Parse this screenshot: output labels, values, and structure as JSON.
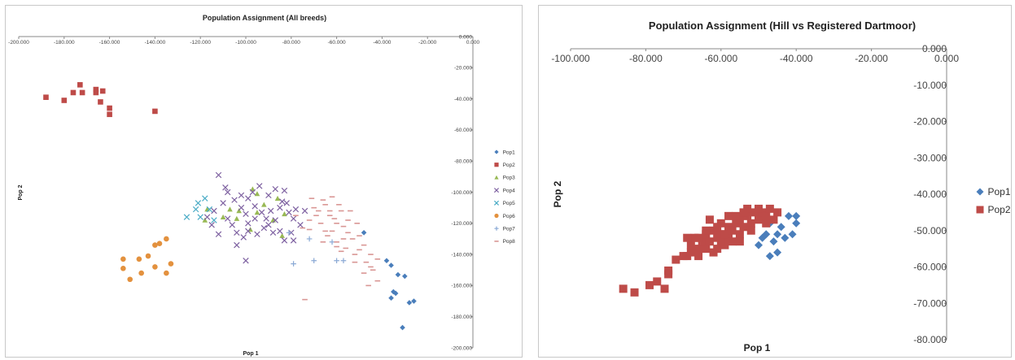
{
  "chart_data": [
    {
      "type": "scatter",
      "title": "Population Assignment (All breeds)",
      "xlabel": "Pop 1",
      "ylabel": "Pop 2",
      "xlim": [
        -200,
        0
      ],
      "ylim": [
        -200,
        0
      ],
      "x_ticks": [
        "-200.000",
        "-180.000",
        "-160.000",
        "-140.000",
        "-120.000",
        "-100.000",
        "-80.000",
        "-60.000",
        "-40.000",
        "-20.000",
        "0.000"
      ],
      "y_ticks": [
        "0.000",
        "-20.000",
        "-40.000",
        "-60.000",
        "-80.000",
        "-100.000",
        "-120.000",
        "-140.000",
        "-160.000",
        "-180.000",
        "-200.000"
      ],
      "grid": false,
      "legend_position": "right",
      "series": [
        {
          "name": "Pop1",
          "color": "#4a7ebb",
          "marker": "diamond",
          "points": [
            [
              -48,
              -126
            ],
            [
              -38,
              -144
            ],
            [
              -36,
              -147
            ],
            [
              -33,
              -153
            ],
            [
              -30,
              -154
            ],
            [
              -34,
              -165
            ],
            [
              -36,
              -168
            ],
            [
              -35,
              -164
            ],
            [
              -28,
              -171
            ],
            [
              -26,
              -170
            ],
            [
              -31,
              -187
            ]
          ]
        },
        {
          "name": "Pop2",
          "color": "#be4b48",
          "marker": "square",
          "points": [
            [
              -188,
              -39
            ],
            [
              -180,
              -41
            ],
            [
              -176,
              -36
            ],
            [
              -173,
              -31
            ],
            [
              -172,
              -36
            ],
            [
              -166,
              -34
            ],
            [
              -166,
              -36
            ],
            [
              -163,
              -35
            ],
            [
              -164,
              -42
            ],
            [
              -160,
              -46
            ],
            [
              -160,
              -50
            ],
            [
              -140,
              -48
            ]
          ]
        },
        {
          "name": "Pop3",
          "color": "#98b954",
          "marker": "triangle",
          "points": [
            [
              -118,
              -118
            ],
            [
              -117,
              -111
            ],
            [
              -110,
              -116
            ],
            [
              -107,
              -111
            ],
            [
              -104,
              -117
            ],
            [
              -103,
              -112
            ],
            [
              -97,
              -98
            ],
            [
              -95,
              -113
            ],
            [
              -98,
              -124
            ],
            [
              -92,
              -108
            ],
            [
              -88,
              -118
            ],
            [
              -86,
              -104
            ],
            [
              -83,
              -114
            ],
            [
              -84,
              -128
            ],
            [
              -95,
              -101
            ]
          ]
        },
        {
          "name": "Pop4",
          "color": "#7d60a0",
          "marker": "x",
          "points": [
            [
              -112,
              -89
            ],
            [
              -109,
              -97
            ],
            [
              -108,
              -100
            ],
            [
              -110,
              -107
            ],
            [
              -114,
              -112
            ],
            [
              -105,
              -105
            ],
            [
              -102,
              -110
            ],
            [
              -100,
              -114
            ],
            [
              -99,
              -104
            ],
            [
              -97,
              -100
            ],
            [
              -94,
              -96
            ],
            [
              -96,
              -109
            ],
            [
              -93,
              -113
            ],
            [
              -91,
              -117
            ],
            [
              -89,
              -112
            ],
            [
              -90,
              -121
            ],
            [
              -87,
              -118
            ],
            [
              -85,
              -110
            ],
            [
              -82,
              -107
            ],
            [
              -81,
              -113
            ],
            [
              -79,
              -117
            ],
            [
              -78,
              -111
            ],
            [
              -76,
              -121
            ],
            [
              -80,
              -126
            ],
            [
              -83,
              -131
            ],
            [
              -88,
              -126
            ],
            [
              -92,
              -123
            ],
            [
              -95,
              -127
            ],
            [
              -99,
              -120
            ],
            [
              -101,
              -129
            ],
            [
              -104,
              -126
            ],
            [
              -106,
              -121
            ],
            [
              -108,
              -117
            ],
            [
              -112,
              -127
            ],
            [
              -115,
              -121
            ],
            [
              -117,
              -116
            ],
            [
              -102,
              -102
            ],
            [
              -87,
              -98
            ],
            [
              -84,
              -106
            ],
            [
              -83,
              -99
            ],
            [
              -79,
              -131
            ],
            [
              -100,
              -144
            ],
            [
              -74,
              -112
            ],
            [
              -96,
              -117
            ],
            [
              -90,
              -102
            ],
            [
              -85,
              -125
            ],
            [
              -99,
              -125
            ],
            [
              -104,
              -134
            ]
          ]
        },
        {
          "name": "Pop5",
          "color": "#4bacc6",
          "marker": "x",
          "points": [
            [
              -126,
              -116
            ],
            [
              -121,
              -107
            ],
            [
              -118,
              -104
            ],
            [
              -116,
              -111
            ],
            [
              -114,
              -118
            ],
            [
              -120,
              -116
            ],
            [
              -122,
              -111
            ]
          ]
        },
        {
          "name": "Pop6",
          "color": "#e3913e",
          "marker": "circle",
          "points": [
            [
              -154,
              -143
            ],
            [
              -154,
              -149
            ],
            [
              -147,
              -143
            ],
            [
              -151,
              -156
            ],
            [
              -146,
              -152
            ],
            [
              -143,
              -141
            ],
            [
              -140,
              -134
            ],
            [
              -138,
              -133
            ],
            [
              -135,
              -130
            ],
            [
              -140,
              -148
            ],
            [
              -135,
              -152
            ],
            [
              -133,
              -146
            ]
          ]
        },
        {
          "name": "Pop7",
          "color": "#8aa9d5",
          "marker": "plus",
          "points": [
            [
              -81,
              -126
            ],
            [
              -72,
              -130
            ],
            [
              -70,
              -144
            ],
            [
              -60,
              -144
            ],
            [
              -57,
              -144
            ],
            [
              -62,
              -132
            ],
            [
              -79,
              -146
            ]
          ]
        },
        {
          "name": "Pop8",
          "color": "#d99694",
          "marker": "dash",
          "points": [
            [
              -70,
              -110
            ],
            [
              -68,
              -112
            ],
            [
              -65,
              -108
            ],
            [
              -63,
              -115
            ],
            [
              -60,
              -120
            ],
            [
              -62,
              -125
            ],
            [
              -58,
              -112
            ],
            [
              -55,
              -118
            ],
            [
              -57,
              -122
            ],
            [
              -53,
              -130
            ],
            [
              -60,
              -132
            ],
            [
              -64,
              -128
            ],
            [
              -67,
              -120
            ],
            [
              -72,
              -118
            ],
            [
              -75,
              -123
            ],
            [
              -78,
              -115
            ],
            [
              -55,
              -126
            ],
            [
              -50,
              -128
            ],
            [
              -48,
              -134
            ],
            [
              -52,
              -140
            ],
            [
              -56,
              -136
            ],
            [
              -45,
              -140
            ],
            [
              -42,
              -143
            ],
            [
              -45,
              -148
            ],
            [
              -48,
              -152
            ],
            [
              -42,
              -157
            ],
            [
              -46,
              -160
            ],
            [
              -52,
              -145
            ],
            [
              -58,
              -138
            ],
            [
              -66,
              -105
            ],
            [
              -71,
              -104
            ],
            [
              -62,
              -103
            ],
            [
              -72,
              -124
            ],
            [
              -66,
              -132
            ],
            [
              -74,
              -169
            ],
            [
              -63,
              -112
            ],
            [
              -59,
              -108
            ],
            [
              -51,
              -120
            ],
            [
              -54,
              -112
            ],
            [
              -69,
              -115
            ],
            [
              -61,
              -117
            ],
            [
              -65,
              -125
            ],
            [
              -57,
              -130
            ],
            [
              -60,
              -135
            ],
            [
              -50,
              -137
            ],
            [
              -47,
              -145
            ],
            [
              -44,
              -150
            ]
          ]
        }
      ]
    },
    {
      "type": "scatter",
      "title": "Population Assignment (Hill vs Registered Dartmoor)",
      "xlabel": "Pop 1",
      "ylabel": "Pop 2",
      "xlim": [
        -100,
        0
      ],
      "ylim": [
        -80,
        0
      ],
      "x_ticks": [
        "-100.000",
        "-80.000",
        "-60.000",
        "-40.000",
        "-20.000",
        "0.000"
      ],
      "y_ticks": [
        "0.000",
        "-10.000",
        "-20.000",
        "-30.000",
        "-40.000",
        "-50.000",
        "-60.000",
        "-70.000",
        "-80.000"
      ],
      "grid": false,
      "legend_position": "right",
      "series": [
        {
          "name": "Pop1",
          "color": "#4a7ebb",
          "marker": "diamond",
          "points": [
            [
              -50,
              -54
            ],
            [
              -48,
              -51
            ],
            [
              -47,
              -57
            ],
            [
              -46,
              -53
            ],
            [
              -45,
              -56
            ],
            [
              -45,
              -51
            ],
            [
              -44,
              -49
            ],
            [
              -43,
              -52
            ],
            [
              -42,
              -46
            ],
            [
              -40,
              -48
            ],
            [
              -40,
              -46
            ],
            [
              -41,
              -51
            ],
            [
              -47,
              -48
            ],
            [
              -49,
              -52
            ]
          ]
        },
        {
          "name": "Pop2",
          "color": "#be4b48",
          "marker": "square",
          "points": [
            [
              -86,
              -66
            ],
            [
              -83,
              -67
            ],
            [
              -79,
              -65
            ],
            [
              -77,
              -64
            ],
            [
              -75,
              -66
            ],
            [
              -74,
              -62
            ],
            [
              -74,
              -61
            ],
            [
              -72,
              -58
            ],
            [
              -70,
              -57
            ],
            [
              -69,
              -57
            ],
            [
              -68,
              -56
            ],
            [
              -68,
              -54
            ],
            [
              -67,
              -52
            ],
            [
              -66,
              -55
            ],
            [
              -66,
              -57
            ],
            [
              -65,
              -53
            ],
            [
              -64,
              -51
            ],
            [
              -64,
              -55
            ],
            [
              -63,
              -53
            ],
            [
              -62,
              -56
            ],
            [
              -62,
              -50
            ],
            [
              -61,
              -52
            ],
            [
              -61,
              -55
            ],
            [
              -60,
              -48
            ],
            [
              -60,
              -51
            ],
            [
              -59,
              -54
            ],
            [
              -58,
              -52
            ],
            [
              -58,
              -49
            ],
            [
              -57,
              -53
            ],
            [
              -57,
              -50
            ],
            [
              -56,
              -48
            ],
            [
              -55,
              -51
            ],
            [
              -55,
              -47
            ],
            [
              -54,
              -49
            ],
            [
              -53,
              -46
            ],
            [
              -52,
              -48
            ],
            [
              -51,
              -45
            ],
            [
              -50,
              -47
            ],
            [
              -49,
              -45
            ],
            [
              -48,
              -46
            ],
            [
              -47,
              -44
            ],
            [
              -46,
              -47
            ],
            [
              -45,
              -45
            ],
            [
              -53,
              -44
            ],
            [
              -50,
              -44
            ],
            [
              -56,
              -46
            ],
            [
              -58,
              -46
            ],
            [
              -63,
              -47
            ],
            [
              -66,
              -52
            ],
            [
              -60,
              -53
            ],
            [
              -55,
              -53
            ],
            [
              -52,
              -50
            ],
            [
              -48,
              -48
            ],
            [
              -69,
              -52
            ],
            [
              -64,
              -50
            ],
            [
              -59,
              -51
            ],
            [
              -61,
              -49
            ],
            [
              -54,
              -45
            ]
          ]
        }
      ]
    }
  ]
}
